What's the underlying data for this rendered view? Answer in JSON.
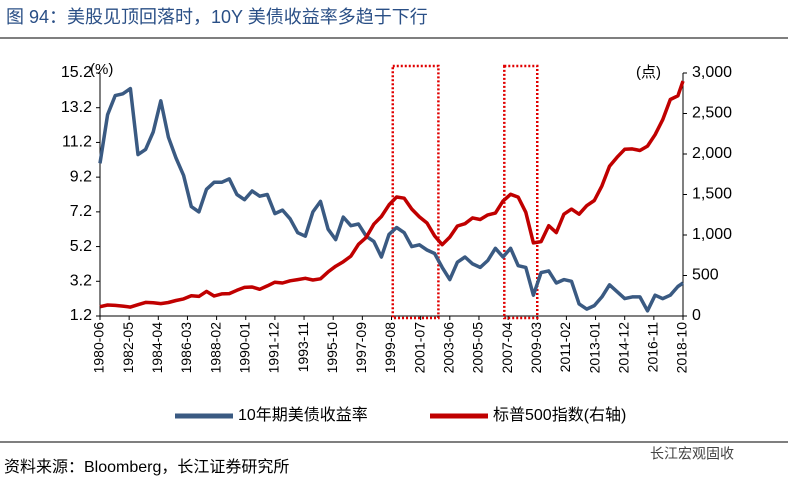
{
  "chart_data": {
    "type": "line",
    "title": "图 94：美股见顶回落时，10Y 美债收益率多趋于下行",
    "y_unit": "(%)",
    "y2_unit": "(点)",
    "source": "资料来源：Bloomberg，长江证券研究所",
    "watermark": "长江宏观固收",
    "x": [
      "1980-06",
      "1980-12",
      "1981-06",
      "1981-12",
      "1982-06",
      "1982-12",
      "1983-06",
      "1983-12",
      "1984-06",
      "1984-12",
      "1985-06",
      "1985-12",
      "1986-06",
      "1986-12",
      "1987-06",
      "1987-12",
      "1988-06",
      "1988-12",
      "1989-06",
      "1989-12",
      "1990-06",
      "1990-12",
      "1991-06",
      "1991-12",
      "1992-06",
      "1992-12",
      "1993-06",
      "1993-12",
      "1994-06",
      "1994-12",
      "1995-06",
      "1995-12",
      "1996-06",
      "1996-12",
      "1997-06",
      "1997-12",
      "1998-06",
      "1998-12",
      "1999-06",
      "1999-12",
      "2000-06",
      "2000-12",
      "2001-06",
      "2001-12",
      "2002-06",
      "2002-12",
      "2003-06",
      "2003-12",
      "2004-06",
      "2004-12",
      "2005-06",
      "2005-12",
      "2006-06",
      "2006-12",
      "2007-06",
      "2007-12",
      "2008-06",
      "2008-12",
      "2009-06",
      "2009-12",
      "2010-06",
      "2010-12",
      "2011-06",
      "2011-12",
      "2012-06",
      "2012-12",
      "2013-06",
      "2013-12",
      "2014-06",
      "2014-12",
      "2015-06",
      "2015-12",
      "2016-06",
      "2016-12",
      "2017-06",
      "2017-12",
      "2018-06",
      "2018-10"
    ],
    "series": [
      {
        "name": "10年期美债收益率",
        "color": "#3a5a82",
        "axis": "y",
        "values": [
          10.0,
          12.8,
          13.9,
          14.0,
          14.3,
          10.5,
          10.8,
          11.8,
          13.6,
          11.5,
          10.3,
          9.3,
          7.5,
          7.2,
          8.5,
          8.9,
          8.9,
          9.1,
          8.2,
          7.9,
          8.4,
          8.1,
          8.2,
          7.1,
          7.3,
          6.8,
          6.0,
          5.8,
          7.2,
          7.8,
          6.2,
          5.6,
          6.9,
          6.4,
          6.5,
          5.8,
          5.5,
          4.6,
          5.9,
          6.3,
          6.0,
          5.2,
          5.3,
          5.0,
          4.8,
          4.0,
          3.3,
          4.3,
          4.6,
          4.2,
          4.0,
          4.4,
          5.1,
          4.6,
          5.1,
          4.1,
          4.0,
          2.4,
          3.7,
          3.8,
          3.1,
          3.3,
          3.2,
          1.9,
          1.6,
          1.8,
          2.3,
          3.0,
          2.6,
          2.2,
          2.3,
          2.3,
          1.5,
          2.4,
          2.2,
          2.4,
          2.9,
          3.1
        ]
      },
      {
        "name": "标普500指数(右轴)",
        "color": "#c00000",
        "axis": "y2",
        "values": [
          115,
          136,
          131,
          122,
          110,
          140,
          168,
          164,
          153,
          167,
          191,
          211,
          250,
          242,
          304,
          247,
          273,
          277,
          317,
          353,
          358,
          330,
          371,
          417,
          408,
          435,
          450,
          466,
          444,
          459,
          544,
          615,
          670,
          740,
          885,
          970,
          1133,
          1229,
          1372,
          1469,
          1454,
          1320,
          1224,
          1148,
          989,
          880,
          974,
          1111,
          1140,
          1211,
          1191,
          1248,
          1270,
          1418,
          1503,
          1468,
          1280,
          903,
          919,
          1115,
          1030,
          1257,
          1320,
          1257,
          1362,
          1426,
          1606,
          1848,
          1960,
          2058,
          2063,
          2043,
          2098,
          2238,
          2423,
          2673,
          2718,
          2900
        ]
      }
    ],
    "xlim": [
      "1980-06",
      "2018-10"
    ],
    "xticks": [
      "1980-06",
      "1982-05",
      "1984-04",
      "1986-03",
      "1988-02",
      "1990-01",
      "1991-12",
      "1993-11",
      "1995-10",
      "1997-09",
      "1999-08",
      "2001-07",
      "2003-06",
      "2005-05",
      "2007-04",
      "2009-03",
      "2011-02",
      "2013-01",
      "2014-12",
      "2016-11",
      "2018-10"
    ],
    "ylim": [
      1.2,
      15.2
    ],
    "yticks": [
      1.2,
      3.2,
      5.2,
      7.2,
      9.2,
      11.2,
      13.2,
      15.2
    ],
    "y2lim": [
      0,
      3000
    ],
    "y2ticks": [
      0,
      500,
      {
        "value": 1000,
        "label": "1,000"
      },
      {
        "value": 1500,
        "label": "1,500"
      },
      {
        "value": 2000,
        "label": "2,000"
      },
      {
        "value": 2500,
        "label": "2,500"
      },
      {
        "value": 3000,
        "label": "3,000"
      }
    ],
    "highlights": [
      [
        "1999-09",
        "2002-09"
      ],
      [
        "2007-01",
        "2009-03"
      ]
    ],
    "highlight_color": "#e00000"
  }
}
